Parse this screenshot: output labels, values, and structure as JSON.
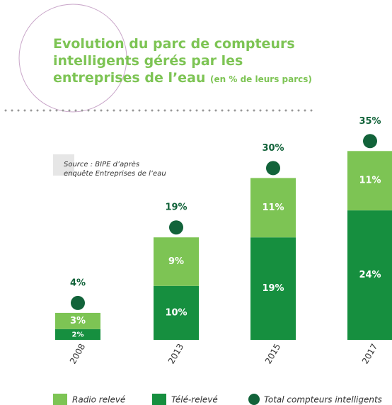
{
  "chart_data": {
    "type": "stacked-bar",
    "title": "Evolution du parc de compteurs intelligents gérés par les entreprises de l’eau",
    "subtitle": "(en % de leurs parcs)",
    "source": "Source : BIPE d’après enquête Entreprises de l’eau",
    "categories": [
      "2008",
      "2013",
      "2015",
      "2017"
    ],
    "series": [
      {
        "name": "Télé-relevé",
        "color": "#168f3f",
        "values": [
          2,
          10,
          19,
          24
        ],
        "value_labels": [
          "2%",
          "10%",
          "19%",
          "24%"
        ]
      },
      {
        "name": "Radio relevé",
        "color": "#7dc454",
        "values": [
          3,
          9,
          11,
          11
        ],
        "value_labels": [
          "3%",
          "9%",
          "11%",
          "11%"
        ]
      }
    ],
    "totals": {
      "name": "Total compteurs intelligents",
      "color": "#12633a",
      "values": [
        4,
        19,
        30,
        35
      ],
      "value_labels": [
        "4%",
        "19%",
        "30%",
        "35%"
      ]
    }
  }
}
